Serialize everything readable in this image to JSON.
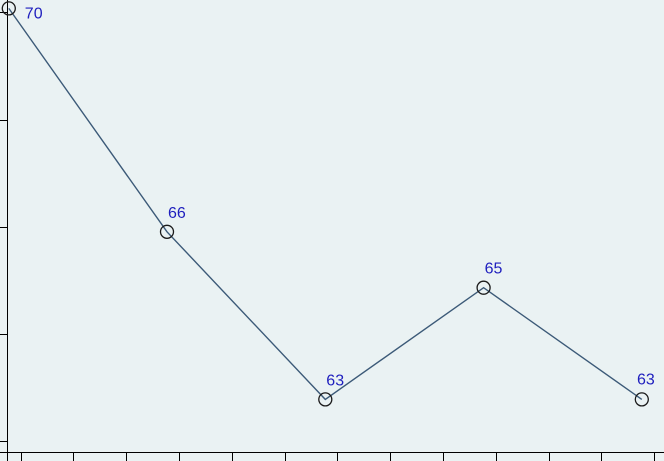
{
  "chart_data": {
    "type": "line",
    "title": "",
    "xlabel": "",
    "ylabel": "",
    "x": [
      1,
      2,
      3,
      4,
      5
    ],
    "series": [
      {
        "values": [
          70,
          66,
          63,
          65,
          63
        ]
      }
    ],
    "data_labels": [
      "70",
      "66",
      "63",
      "65",
      "63"
    ],
    "xlim": [
      0.992,
      5.14
    ],
    "ylim": [
      62.05,
      70.15
    ],
    "x_tick_count": 13,
    "y_tick_count": 5,
    "grid": false,
    "legend": "none",
    "colors": {
      "background": "#eaf2f3",
      "line": "#3c5a78",
      "marker": "#1a1a1a",
      "label": "#1e1ebe",
      "axis": "#000000"
    }
  }
}
